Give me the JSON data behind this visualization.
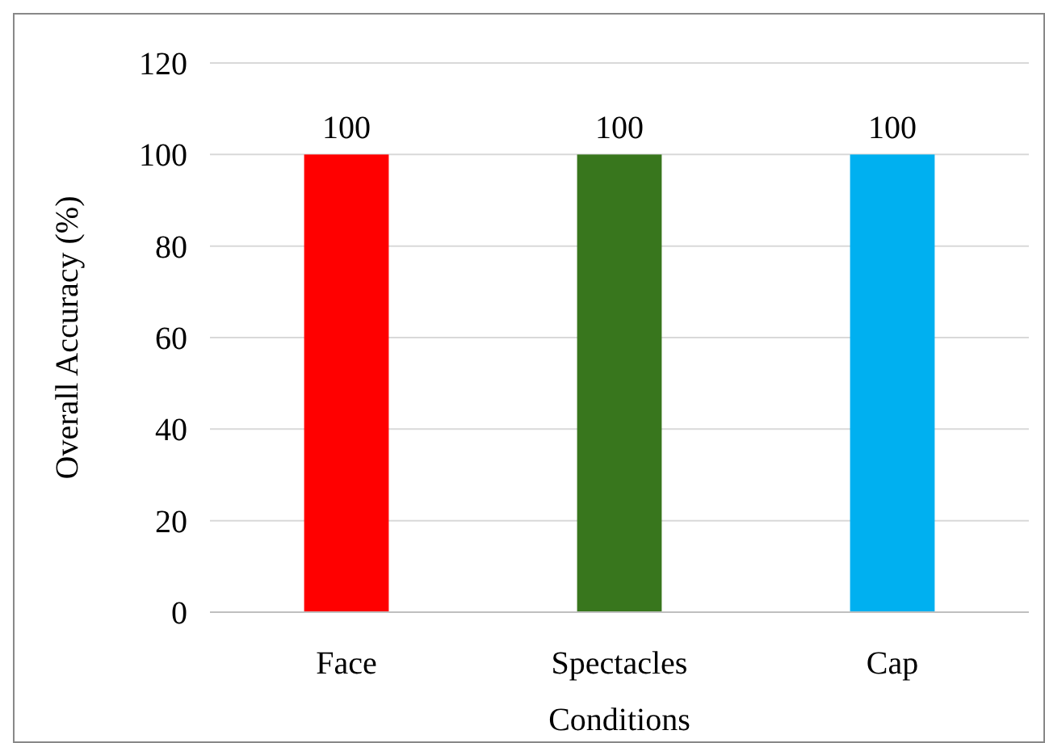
{
  "chart_data": {
    "type": "bar",
    "xlabel": "Conditions",
    "ylabel": "Overall Accuracy (%)",
    "categories": [
      "Face",
      "Spectacles",
      "Cap"
    ],
    "values": [
      100,
      100,
      100
    ],
    "colors": [
      "#ff0000",
      "#38761d",
      "#00b0f0"
    ],
    "ylim": [
      0,
      120
    ],
    "yticks": [
      0,
      20,
      40,
      60,
      80,
      100,
      120
    ],
    "grid": "y",
    "data_labels": true
  }
}
